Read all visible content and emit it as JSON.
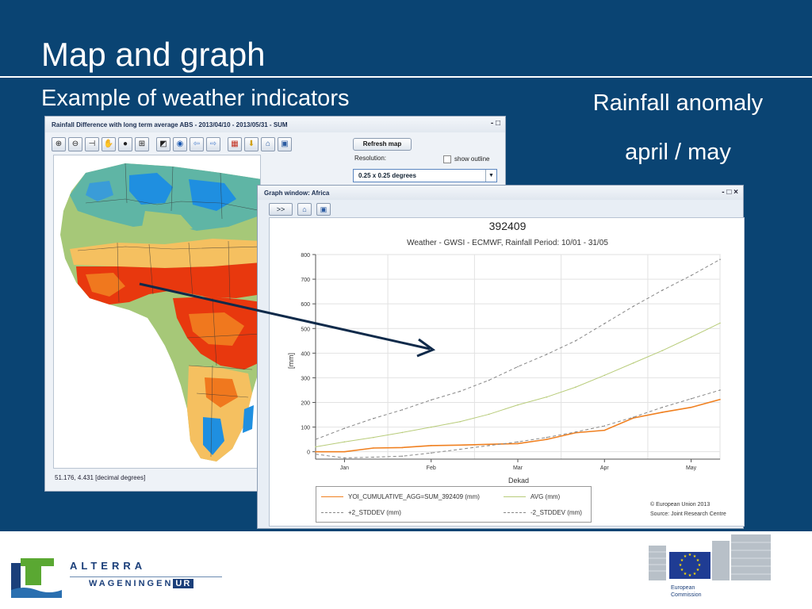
{
  "slide": {
    "title": "Map and graph",
    "subtitle": "Example of weather indicators",
    "annotation_line1": "Rainfall anomaly",
    "annotation_line2": "april / may"
  },
  "map_window": {
    "title": "Rainfall Difference with long term average ABS - 2013/04/10 - 2013/05/31 - SUM",
    "window_controls": "- □",
    "toolbar_icons": [
      "zoom-in-icon",
      "zoom-out-icon",
      "measure-icon",
      "pan-icon",
      "info-icon",
      "select-icon",
      "layers-icon",
      "globe-icon",
      "back-icon",
      "forward-icon",
      "export-icon",
      "download-icon",
      "home-icon",
      "save-icon"
    ],
    "refresh_label": "Refresh map",
    "resolution_label": "Resolution:",
    "show_outline_label": "show outline",
    "resolution_value": "0.25 x 0.25 degrees",
    "coordinates": "51.176, 4.431 [decimal degrees]",
    "colors": {
      "wet": "#1f8fe0",
      "moist": "#5fb5a5",
      "neutral": "#a6c878",
      "dry": "#f5c060",
      "very_dry": "#f0781e",
      "extreme_dry": "#e8380e"
    }
  },
  "graph_window": {
    "title": "Graph window: Africa",
    "window_controls": "- □ ×",
    "expand_label": ">>",
    "chart_title": "392409",
    "chart_subtitle": "Weather - GWSI - ECMWF, Rainfall  Period: 10/01 - 31/05",
    "copyright_line1": "© European Union 2013",
    "copyright_line2": "Source: Joint Research Centre"
  },
  "chart_data": {
    "type": "line",
    "title": "392409",
    "subtitle": "Weather - GWSI - ECMWF, Rainfall  Period: 10/01 - 31/05",
    "xlabel": "Dekad",
    "ylabel": "[mm]",
    "x_ticks": [
      "Jan",
      "Feb",
      "Mar",
      "Apr",
      "May"
    ],
    "y_ticks": [
      0,
      100,
      200,
      300,
      400,
      500,
      600,
      700,
      800
    ],
    "ylim": [
      -30,
      800
    ],
    "grid": true,
    "legend_placement": "bottom",
    "x": [
      1,
      2,
      3,
      4,
      5,
      6,
      7,
      8,
      9,
      10,
      11,
      12,
      13,
      14,
      15
    ],
    "series": [
      {
        "name": "YOI_CUMULATIVE_AGG=SUM_392409 (mm)",
        "color": "#f08020",
        "style": "solid",
        "values": [
          0,
          0,
          15,
          17,
          25,
          27,
          30,
          33,
          50,
          77,
          87,
          137,
          160,
          180,
          212
        ]
      },
      {
        "name": "AVG (mm)",
        "color": "#b8cc7a",
        "style": "solid",
        "values": [
          20,
          40,
          58,
          78,
          100,
          122,
          152,
          190,
          222,
          262,
          310,
          360,
          410,
          465,
          522
        ]
      },
      {
        "name": "+2_STDDEV (mm)",
        "color": "#888888",
        "style": "dashed",
        "values": [
          50,
          95,
          135,
          170,
          210,
          245,
          290,
          345,
          395,
          450,
          520,
          590,
          655,
          715,
          780
        ]
      },
      {
        "name": "-2_STDDEV (mm)",
        "color": "#888888",
        "style": "dashed",
        "values": [
          -10,
          -25,
          -22,
          -18,
          -5,
          10,
          25,
          40,
          58,
          80,
          105,
          140,
          180,
          215,
          250
        ]
      }
    ]
  },
  "footer": {
    "alterra_name": "ALTERRA",
    "wageningen": "WAGENINGEN",
    "ur": "UR",
    "ec_line1": "European",
    "ec_line2": "Commission"
  }
}
